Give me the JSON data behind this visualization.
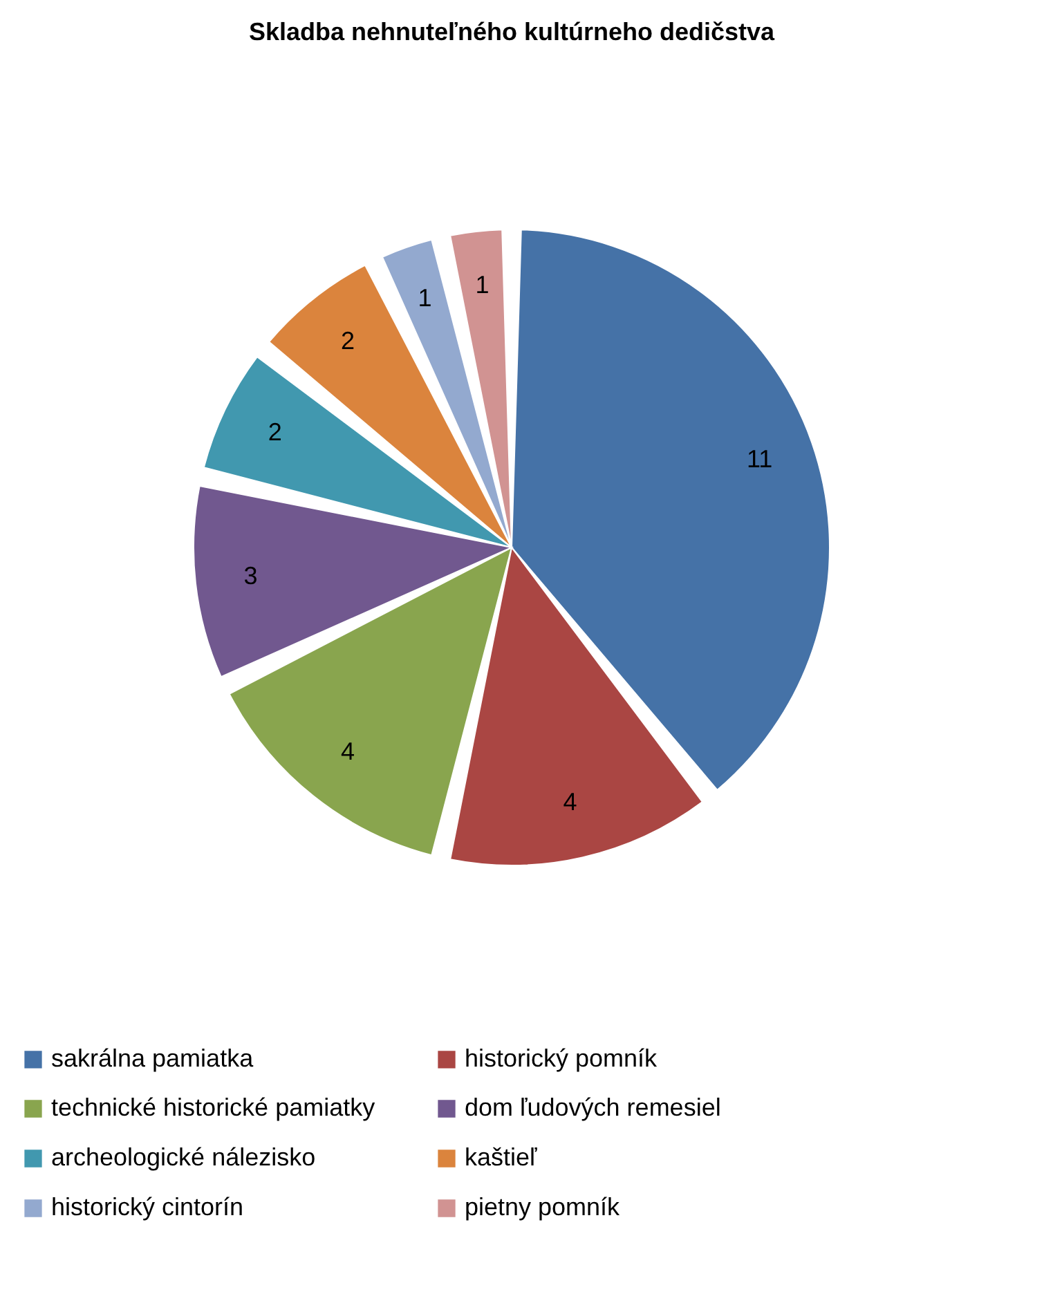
{
  "chart_data": {
    "type": "pie",
    "title": "Skladba nehnuteľného kultúrneho dedičstva",
    "categories": [
      "sakrálna pamiatka",
      "historický pomník",
      "technické historické pamiatky",
      "dom ľudových remesiel",
      "archeologické nálezisko",
      "kaštieľ",
      "historický cintorín",
      "pietny pomník"
    ],
    "values": [
      11,
      4,
      4,
      3,
      2,
      2,
      1,
      1
    ],
    "colors": [
      "#4572a7",
      "#aa4643",
      "#89a54e",
      "#71588f",
      "#4198af",
      "#db843d",
      "#93a9cf",
      "#d19392"
    ],
    "data_labels": true,
    "legend": "bottom"
  }
}
